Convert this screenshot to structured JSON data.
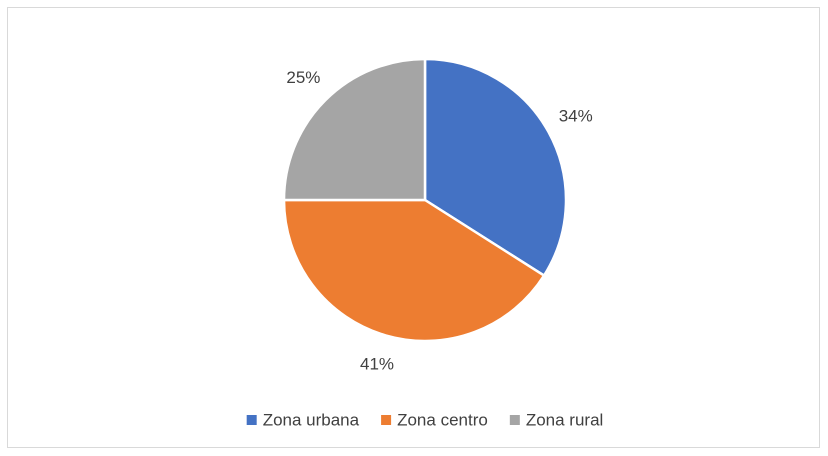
{
  "chart_data": {
    "type": "pie",
    "categories": [
      "Zona urbana",
      "Zona centro",
      "Zona rural"
    ],
    "values": [
      34,
      41,
      25
    ],
    "value_labels": [
      "34%",
      "41%",
      "25%"
    ],
    "colors": [
      "#4472c4",
      "#ed7d31",
      "#a5a5a5"
    ],
    "legend": "bottom"
  }
}
